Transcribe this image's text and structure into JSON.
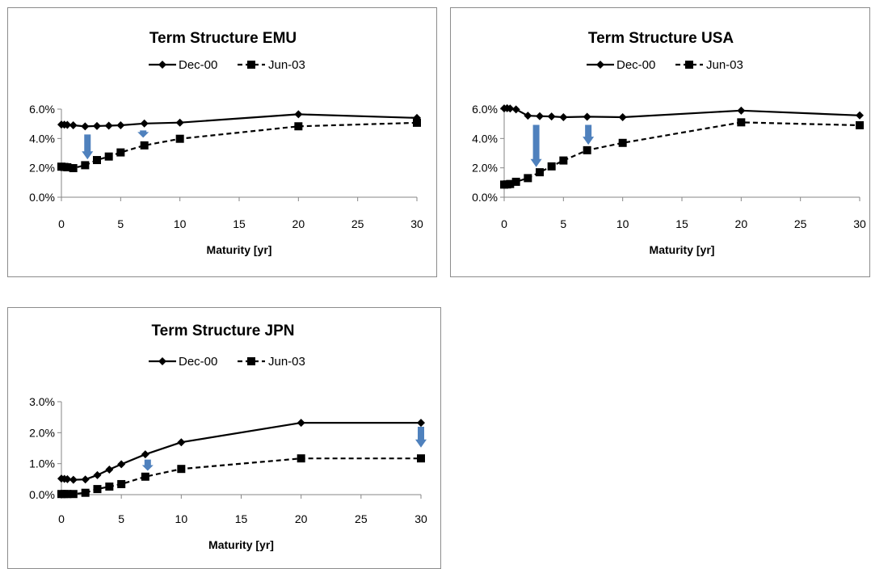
{
  "chart_data": [
    {
      "type": "line",
      "title": "Term Structure EMU",
      "xlabel": "Maturity [yr]",
      "ylabel": "",
      "xlim": [
        0,
        30
      ],
      "ylim": [
        0,
        0.06
      ],
      "xticks": [
        "0",
        "5",
        "10",
        "15",
        "20",
        "25",
        "30"
      ],
      "yticks": [
        "0.0%",
        "2.0%",
        "4.0%",
        "6.0%"
      ],
      "legend": "top",
      "grid": false,
      "series": [
        {
          "name": "Dec-00",
          "marker": "diamond",
          "dash": "solid",
          "x": [
            0,
            0.25,
            0.5,
            1,
            2,
            3,
            4,
            5,
            7,
            10,
            20,
            30
          ],
          "y": [
            0.0495,
            0.0494,
            0.0493,
            0.049,
            0.0482,
            0.0485,
            0.0487,
            0.049,
            0.0502,
            0.0508,
            0.0565,
            0.054
          ]
        },
        {
          "name": "Jun-03",
          "marker": "square",
          "dash": "dashed",
          "x": [
            0,
            0.25,
            0.5,
            1,
            2,
            3,
            4,
            5,
            7,
            10,
            20,
            30
          ],
          "y": [
            0.0208,
            0.0206,
            0.0204,
            0.0198,
            0.0218,
            0.0253,
            0.0277,
            0.0305,
            0.0353,
            0.0398,
            0.0483,
            0.0507
          ]
        }
      ],
      "arrows": [
        {
          "x": 2.2,
          "from": 0.0427,
          "to": 0.0257
        },
        {
          "x": 6.9,
          "from": 0.0455,
          "to": 0.0405
        }
      ]
    },
    {
      "type": "line",
      "title": "Term Structure USA",
      "xlabel": "Maturity [yr]",
      "ylabel": "",
      "xlim": [
        0,
        30
      ],
      "ylim": [
        0,
        0.06
      ],
      "xticks": [
        "0",
        "5",
        "10",
        "15",
        "20",
        "25",
        "30"
      ],
      "yticks": [
        "0.0%",
        "2.0%",
        "4.0%",
        "6.0%"
      ],
      "legend": "top",
      "grid": false,
      "series": [
        {
          "name": "Dec-00",
          "marker": "diamond",
          "dash": "solid",
          "x": [
            0,
            0.25,
            0.5,
            1,
            2,
            3,
            4,
            5,
            7,
            10,
            20,
            30
          ],
          "y": [
            0.0605,
            0.0606,
            0.0604,
            0.0598,
            0.0555,
            0.0552,
            0.055,
            0.0545,
            0.0548,
            0.0545,
            0.059,
            0.0557
          ]
        },
        {
          "name": "Jun-03",
          "marker": "square",
          "dash": "dashed",
          "x": [
            0,
            0.25,
            0.5,
            1,
            2,
            3,
            4,
            5,
            7,
            10,
            20,
            30
          ],
          "y": [
            0.0086,
            0.0087,
            0.009,
            0.0105,
            0.013,
            0.017,
            0.021,
            0.025,
            0.032,
            0.037,
            0.051,
            0.049
          ]
        }
      ],
      "arrows": [
        {
          "x": 2.7,
          "from": 0.0493,
          "to": 0.0205
        },
        {
          "x": 7.1,
          "from": 0.0493,
          "to": 0.0357
        }
      ]
    },
    {
      "type": "line",
      "title": "Term Structure JPN",
      "xlabel": "Maturity [yr]",
      "ylabel": "",
      "xlim": [
        0,
        30
      ],
      "ylim": [
        0,
        0.03
      ],
      "xticks": [
        "0",
        "5",
        "10",
        "15",
        "20",
        "25",
        "30"
      ],
      "yticks": [
        "0.0%",
        "1.0%",
        "2.0%",
        "3.0%"
      ],
      "legend": "top",
      "grid": false,
      "series": [
        {
          "name": "Dec-00",
          "marker": "diamond",
          "dash": "solid",
          "x": [
            0,
            0.25,
            0.5,
            1,
            2,
            3,
            4,
            5,
            7,
            10,
            20,
            30
          ],
          "y": [
            0.0052,
            0.0051,
            0.005,
            0.0048,
            0.0049,
            0.0063,
            0.0081,
            0.0098,
            0.013,
            0.0169,
            0.0232,
            0.0232
          ]
        },
        {
          "name": "Jun-03",
          "marker": "square",
          "dash": "dashed",
          "x": [
            0,
            0.25,
            0.5,
            1,
            2,
            3,
            4,
            5,
            7,
            10,
            20,
            30
          ],
          "y": [
            0.0002,
            0.0002,
            0.0002,
            0.0002,
            0.0006,
            0.0018,
            0.0026,
            0.0034,
            0.0058,
            0.0083,
            0.0117,
            0.0117
          ]
        }
      ],
      "arrows": [
        {
          "x": 7.2,
          "from": 0.0113,
          "to": 0.0077
        },
        {
          "x": 30,
          "from": 0.0219,
          "to": 0.0152
        }
      ]
    }
  ],
  "colors": {
    "line": "#000000",
    "arrow": "#4f81bd",
    "frame": "#8c8c8c",
    "axis": "#868686"
  }
}
